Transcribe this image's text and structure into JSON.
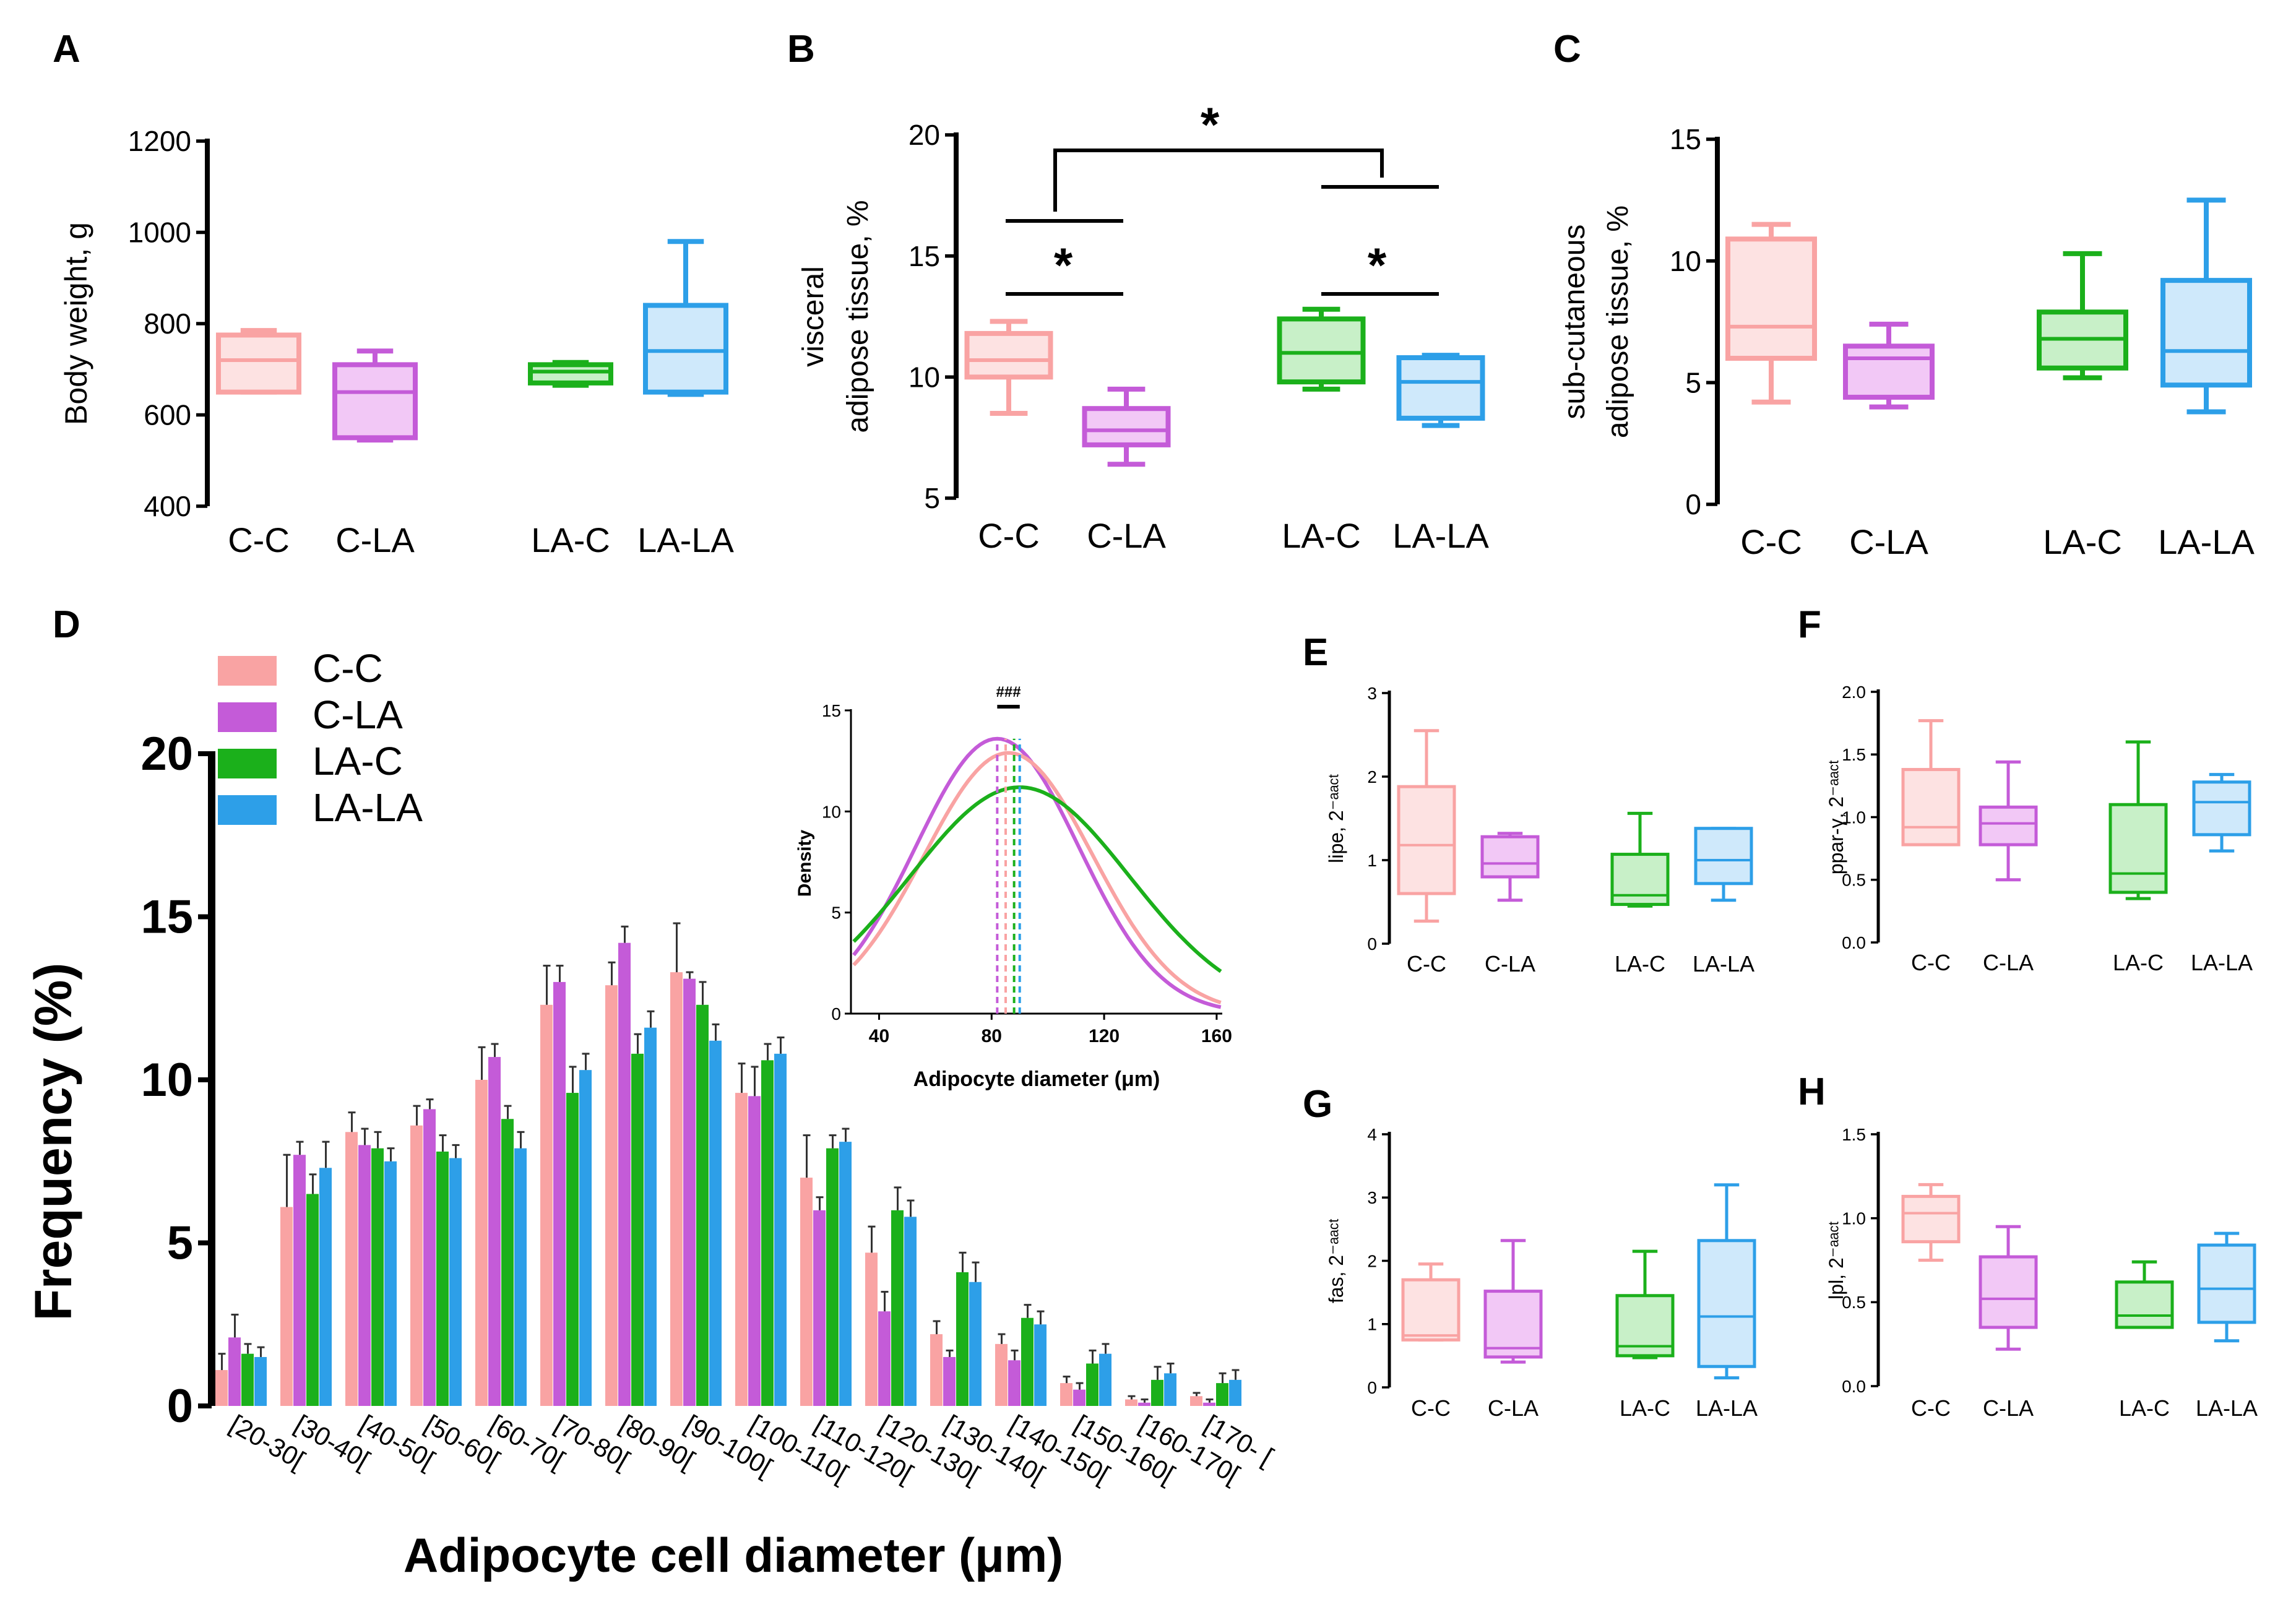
{
  "figure": {
    "panel_letters": {
      "A": "A",
      "B": "B",
      "C": "C",
      "D": "D",
      "E": "E",
      "F": "F",
      "G": "G",
      "H": "H"
    },
    "colors": {
      "C-C": "#f9a3a3",
      "C-LA": "#c45bd8",
      "LA-C": "#1bb01b",
      "LA-LA": "#2d9fe8"
    },
    "fills": {
      "C-C": "#fde2e2",
      "C-LA": "#f2c8f6",
      "LA-C": "#c8f0c8",
      "LA-LA": "#cfe9fb"
    }
  },
  "chart_data": [
    {
      "id": "A",
      "type": "box",
      "title": "",
      "xlabel": "",
      "ylabel": "Body weight, g",
      "ylim": [
        400,
        1200
      ],
      "yticks": [
        "400",
        "600",
        "800",
        "1000",
        "1200"
      ],
      "categories": [
        "C-C",
        "C-LA",
        "LA-C",
        "LA-LA"
      ],
      "boxes": [
        {
          "group": "C-C",
          "min": 650,
          "q1": 650,
          "median": 720,
          "q3": 775,
          "max": 785
        },
        {
          "group": "C-LA",
          "min": 545,
          "q1": 550,
          "median": 650,
          "q3": 710,
          "max": 740
        },
        {
          "group": "LA-C",
          "min": 665,
          "q1": 670,
          "median": 695,
          "q3": 710,
          "max": 715
        },
        {
          "group": "LA-LA",
          "min": 645,
          "q1": 650,
          "median": 740,
          "q3": 840,
          "max": 980
        }
      ]
    },
    {
      "id": "B",
      "type": "box",
      "title": "",
      "xlabel": "",
      "ylabel": [
        "visceral",
        "adipose tissue, %"
      ],
      "ylim": [
        5,
        20
      ],
      "yticks": [
        "5",
        "10",
        "15",
        "20"
      ],
      "categories": [
        "C-C",
        "C-LA",
        "LA-C",
        "LA-LA"
      ],
      "boxes": [
        {
          "group": "C-C",
          "min": 8.5,
          "q1": 10,
          "median": 10.7,
          "q3": 11.8,
          "max": 12.3
        },
        {
          "group": "C-LA",
          "min": 6.4,
          "q1": 7.2,
          "median": 7.8,
          "q3": 8.7,
          "max": 9.5
        },
        {
          "group": "LA-C",
          "min": 9.5,
          "q1": 9.8,
          "median": 11,
          "q3": 12.4,
          "max": 12.8
        },
        {
          "group": "LA-LA",
          "min": 8,
          "q1": 8.3,
          "median": 9.8,
          "q3": 10.8,
          "max": 10.9
        }
      ],
      "annotations": [
        "*",
        "*",
        "*"
      ]
    },
    {
      "id": "C",
      "type": "box",
      "title": "",
      "xlabel": "",
      "ylabel": [
        "sub-cutaneous",
        "adipose tissue, %"
      ],
      "ylim": [
        0,
        15
      ],
      "yticks": [
        "0",
        "5",
        "10",
        "15"
      ],
      "categories": [
        "C-C",
        "C-LA",
        "LA-C",
        "LA-LA"
      ],
      "boxes": [
        {
          "group": "C-C",
          "min": 4.2,
          "q1": 6,
          "median": 7.3,
          "q3": 10.9,
          "max": 11.5
        },
        {
          "group": "C-LA",
          "min": 4,
          "q1": 4.4,
          "median": 6,
          "q3": 6.5,
          "max": 7.4
        },
        {
          "group": "LA-C",
          "min": 5.2,
          "q1": 5.6,
          "median": 6.8,
          "q3": 7.9,
          "max": 10.3
        },
        {
          "group": "LA-LA",
          "min": 3.8,
          "q1": 4.9,
          "median": 6.3,
          "q3": 9.2,
          "max": 12.5
        }
      ]
    },
    {
      "id": "D",
      "type": "bar",
      "xlabel": "Adipocyte cell diameter (μm)",
      "ylabel": "Frequency (%)",
      "ylim": [
        0,
        20
      ],
      "yticks": [
        "0",
        "5",
        "10",
        "15",
        "20"
      ],
      "legend": [
        "C-C",
        "C-LA",
        "LA-C",
        "LA-LA"
      ],
      "legend_position": "top-left",
      "categories": [
        "[20-30[",
        "[30-40[",
        "[40-50[",
        "[50-60[",
        "[60-70[",
        "[70-80[",
        "[80-90[",
        "[90-100[",
        "[100-110[",
        "[110-120[",
        "[120-130[",
        "[130-140[",
        "[140-150[",
        "[150-160[",
        "[160-170[",
        "[170-  ["
      ],
      "series": [
        {
          "name": "C-C",
          "values": [
            1.1,
            6.1,
            8.4,
            8.6,
            10.0,
            12.3,
            12.9,
            13.3,
            9.6,
            7.0,
            4.7,
            2.2,
            1.9,
            0.7,
            0.2,
            0.3
          ],
          "errors": [
            0.5,
            1.6,
            0.6,
            0.6,
            1.0,
            1.2,
            0.7,
            1.5,
            0.9,
            1.3,
            0.8,
            0.4,
            0.3,
            0.2,
            0.1,
            0.1
          ]
        },
        {
          "name": "C-LA",
          "values": [
            2.1,
            7.7,
            8.0,
            9.1,
            10.7,
            13.0,
            14.2,
            13.1,
            9.5,
            6.0,
            2.9,
            1.5,
            1.4,
            0.5,
            0.1,
            0.1
          ],
          "errors": [
            0.7,
            0.4,
            0.5,
            0.3,
            0.4,
            0.5,
            0.5,
            0.2,
            0.9,
            0.4,
            0.6,
            0.2,
            0.3,
            0.2,
            0.1,
            0.1
          ]
        },
        {
          "name": "LA-C",
          "values": [
            1.6,
            6.5,
            7.9,
            7.8,
            8.8,
            9.6,
            10.8,
            12.3,
            10.6,
            7.9,
            6.0,
            4.1,
            2.7,
            1.3,
            0.8,
            0.7
          ],
          "errors": [
            0.3,
            0.6,
            0.5,
            0.5,
            0.4,
            0.8,
            0.6,
            0.7,
            0.5,
            0.4,
            0.7,
            0.6,
            0.4,
            0.4,
            0.4,
            0.3
          ]
        },
        {
          "name": "LA-LA",
          "values": [
            1.5,
            7.3,
            7.5,
            7.6,
            7.9,
            10.3,
            11.6,
            11.2,
            10.8,
            8.1,
            5.8,
            3.8,
            2.5,
            1.6,
            1.0,
            0.8
          ],
          "errors": [
            0.3,
            0.8,
            0.4,
            0.4,
            0.5,
            0.5,
            0.5,
            0.5,
            0.5,
            0.4,
            0.5,
            0.6,
            0.4,
            0.3,
            0.3,
            0.3
          ]
        }
      ]
    },
    {
      "id": "D-inset",
      "type": "line",
      "xlabel": "Adipocyte diameter (μm)",
      "ylabel": "Density",
      "xlim": [
        30,
        162
      ],
      "ylim": [
        0,
        15
      ],
      "xticks": [
        "40",
        "80",
        "120",
        "160"
      ],
      "yticks": [
        "0",
        "5",
        "10",
        "15"
      ],
      "annotation": "###",
      "series": [
        {
          "name": "C-LA",
          "mean": 82,
          "sd": 29,
          "peak": 13.6
        },
        {
          "name": "C-C",
          "mean": 86,
          "sd": 30,
          "peak": 12.9
        },
        {
          "name": "LA-C",
          "mean": 90,
          "sd": 39,
          "peak": 11.2
        }
      ],
      "mean_markers": [
        {
          "name": "C-LA",
          "x": 82
        },
        {
          "name": "C-C",
          "x": 85
        },
        {
          "name": "LA-C",
          "x": 88
        },
        {
          "name": "LA-LA",
          "x": 90
        }
      ]
    },
    {
      "id": "E",
      "type": "box",
      "xlabel": "",
      "ylabel": "lipe, 2⁻ᵃᵃᶜᵗ",
      "ylim": [
        0,
        3
      ],
      "yticks": [
        "0",
        "1",
        "2",
        "3"
      ],
      "categories": [
        "C-C",
        "C-LA",
        "LA-C",
        "LA-LA"
      ],
      "boxes": [
        {
          "group": "C-C",
          "min": 0.27,
          "q1": 0.6,
          "median": 1.18,
          "q3": 1.88,
          "max": 2.55
        },
        {
          "group": "C-LA",
          "min": 0.52,
          "q1": 0.8,
          "median": 0.96,
          "q3": 1.28,
          "max": 1.32
        },
        {
          "group": "LA-C",
          "min": 0.45,
          "q1": 0.47,
          "median": 0.58,
          "q3": 1.07,
          "max": 1.56
        },
        {
          "group": "LA-LA",
          "min": 0.52,
          "q1": 0.72,
          "median": 1.0,
          "q3": 1.38,
          "max": 1.38
        }
      ]
    },
    {
      "id": "F",
      "type": "box",
      "xlabel": "",
      "ylabel": "ppar-γ, 2⁻ᵃᵃᶜᵗ",
      "ylim": [
        0,
        2
      ],
      "yticks": [
        "0.0",
        "0.5",
        "1.0",
        "1.5",
        "2.0"
      ],
      "categories": [
        "C-C",
        "C-LA",
        "LA-C",
        "LA-LA"
      ],
      "boxes": [
        {
          "group": "C-C",
          "min": 0.78,
          "q1": 0.78,
          "median": 0.92,
          "q3": 1.38,
          "max": 1.77
        },
        {
          "group": "C-LA",
          "min": 0.5,
          "q1": 0.78,
          "median": 0.95,
          "q3": 1.08,
          "max": 1.44
        },
        {
          "group": "LA-C",
          "min": 0.35,
          "q1": 0.4,
          "median": 0.55,
          "q3": 1.1,
          "max": 1.6
        },
        {
          "group": "LA-LA",
          "min": 0.73,
          "q1": 0.86,
          "median": 1.12,
          "q3": 1.28,
          "max": 1.34
        }
      ]
    },
    {
      "id": "G",
      "type": "box",
      "xlabel": "",
      "ylabel": "fas, 2⁻ᵃᵃᶜᵗ",
      "ylim": [
        0,
        4
      ],
      "yticks": [
        "0",
        "1",
        "2",
        "3",
        "4"
      ],
      "categories": [
        "C-C",
        "C-LA",
        "LA-C",
        "LA-LA"
      ],
      "boxes": [
        {
          "group": "C-C",
          "min": 0.75,
          "q1": 0.75,
          "median": 0.82,
          "q3": 1.7,
          "max": 1.95
        },
        {
          "group": "C-LA",
          "min": 0.4,
          "q1": 0.48,
          "median": 0.62,
          "q3": 1.52,
          "max": 2.32
        },
        {
          "group": "LA-C",
          "min": 0.47,
          "q1": 0.5,
          "median": 0.65,
          "q3": 1.45,
          "max": 2.15
        },
        {
          "group": "LA-LA",
          "min": 0.15,
          "q1": 0.33,
          "median": 1.12,
          "q3": 2.32,
          "max": 3.2
        }
      ]
    },
    {
      "id": "H",
      "type": "box",
      "xlabel": "",
      "ylabel": "lpl, 2⁻ᵃᵃᶜᵗ",
      "ylim": [
        0,
        1.5
      ],
      "yticks": [
        "0.0",
        "0.5",
        "1.0",
        "1.5"
      ],
      "categories": [
        "C-C",
        "C-LA",
        "LA-C",
        "LA-LA"
      ],
      "boxes": [
        {
          "group": "C-C",
          "min": 0.75,
          "q1": 0.86,
          "median": 1.03,
          "q3": 1.13,
          "max": 1.2
        },
        {
          "group": "C-LA",
          "min": 0.22,
          "q1": 0.35,
          "median": 0.52,
          "q3": 0.77,
          "max": 0.95
        },
        {
          "group": "LA-C",
          "min": 0.35,
          "q1": 0.35,
          "median": 0.42,
          "q3": 0.62,
          "max": 0.74
        },
        {
          "group": "LA-LA",
          "min": 0.27,
          "q1": 0.38,
          "median": 0.58,
          "q3": 0.84,
          "max": 0.91
        }
      ]
    }
  ]
}
